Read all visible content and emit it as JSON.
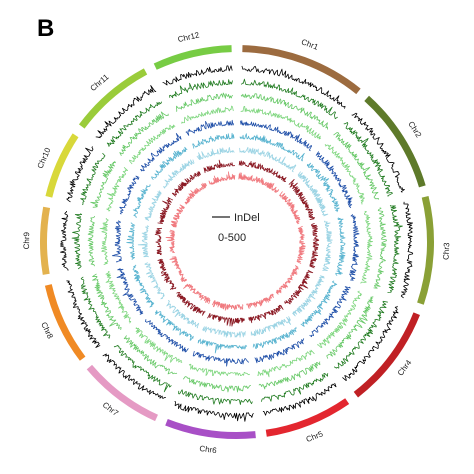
{
  "panel_letter": "B",
  "legend": {
    "label": "InDel",
    "range": "0-500"
  },
  "chromosomes": [
    {
      "name": "Chr1",
      "color": "#9c6b3f",
      "size": 43
    },
    {
      "name": "Chr2",
      "color": "#5e7a2a",
      "size": 36
    },
    {
      "name": "Chr3",
      "color": "#8aa036",
      "size": 37
    },
    {
      "name": "Chr4",
      "color": "#c02024",
      "size": 35
    },
    {
      "name": "Chr5",
      "color": "#e3262f",
      "size": 30
    },
    {
      "name": "Chr6",
      "color": "#a84fc6",
      "size": 31
    },
    {
      "name": "Chr7",
      "color": "#e59ac4",
      "size": 29
    },
    {
      "name": "Chr8",
      "color": "#f08a24",
      "size": 28
    },
    {
      "name": "Chr9",
      "color": "#e3b24e",
      "size": 23
    },
    {
      "name": "Chr10",
      "color": "#d8d83a",
      "size": 23
    },
    {
      "name": "Chr11",
      "color": "#9acc3a",
      "size": 29
    },
    {
      "name": "Chr12",
      "color": "#77cc44",
      "size": 27
    }
  ],
  "tracks": [
    {
      "color": "#000000"
    },
    {
      "color": "#1f7a1f"
    },
    {
      "color": "#67c867"
    },
    {
      "color": "#7fd67f"
    },
    {
      "color": "#1f4fa8"
    },
    {
      "color": "#5ab4d0"
    },
    {
      "color": "#9cd4e4"
    },
    {
      "color": "#8b1a24"
    },
    {
      "color": "#f07b80"
    }
  ]
}
